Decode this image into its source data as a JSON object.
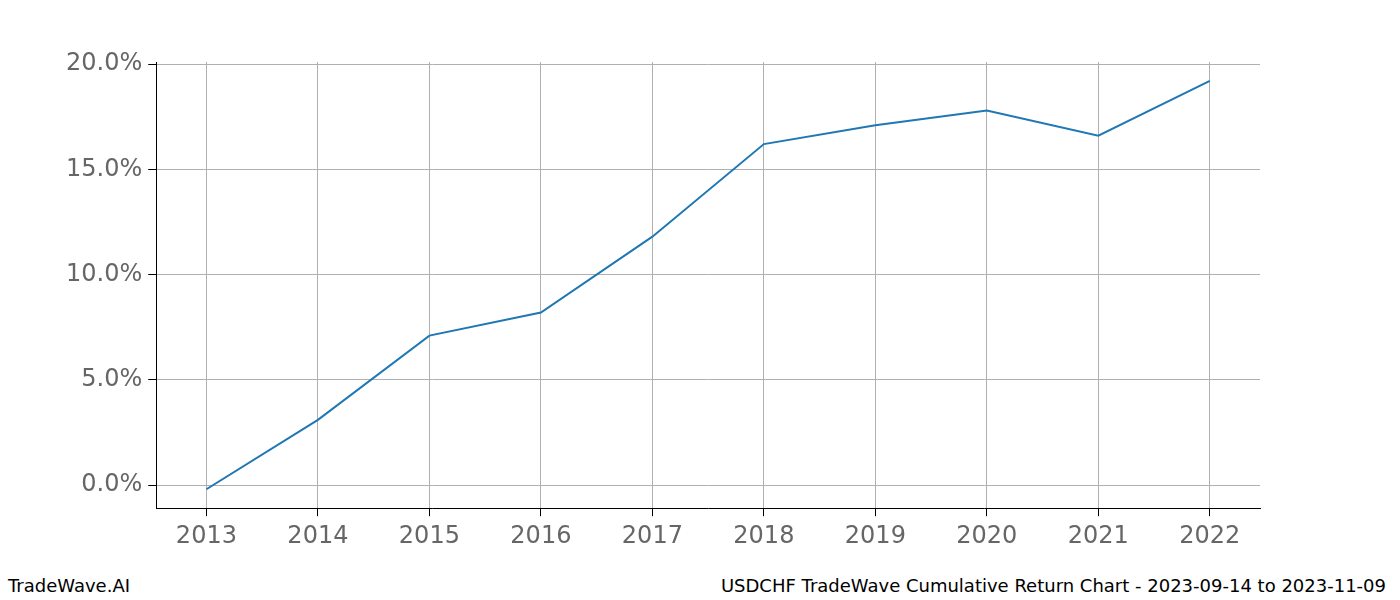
{
  "chart_data": {
    "type": "line",
    "annotations": [
      "TradeWave.AI",
      "USDCHF TradeWave Cumulative Return Chart - 2023-09-14 to 2023-11-09"
    ],
    "x": [
      2013,
      2014,
      2015,
      2016,
      2017,
      2018,
      2019,
      2020,
      2021,
      2022
    ],
    "values": [
      -0.2,
      3.1,
      7.1,
      8.2,
      11.8,
      16.2,
      17.1,
      17.8,
      16.6,
      19.2
    ],
    "color": "#1f77b4",
    "xlim": [
      2012.55,
      2022.45
    ],
    "xticks": [
      2013,
      2014,
      2015,
      2016,
      2017,
      2018,
      2019,
      2020,
      2021,
      2022
    ],
    "ylim": [
      -1.1,
      20.1
    ],
    "yticks": [
      {
        "value": 0,
        "label": "0.0%"
      },
      {
        "value": 5,
        "label": "5.0%"
      },
      {
        "value": 10,
        "label": "10.0%"
      },
      {
        "value": 15,
        "label": "15.0%"
      },
      {
        "value": 20,
        "label": "20.0%"
      }
    ],
    "grid": true
  }
}
